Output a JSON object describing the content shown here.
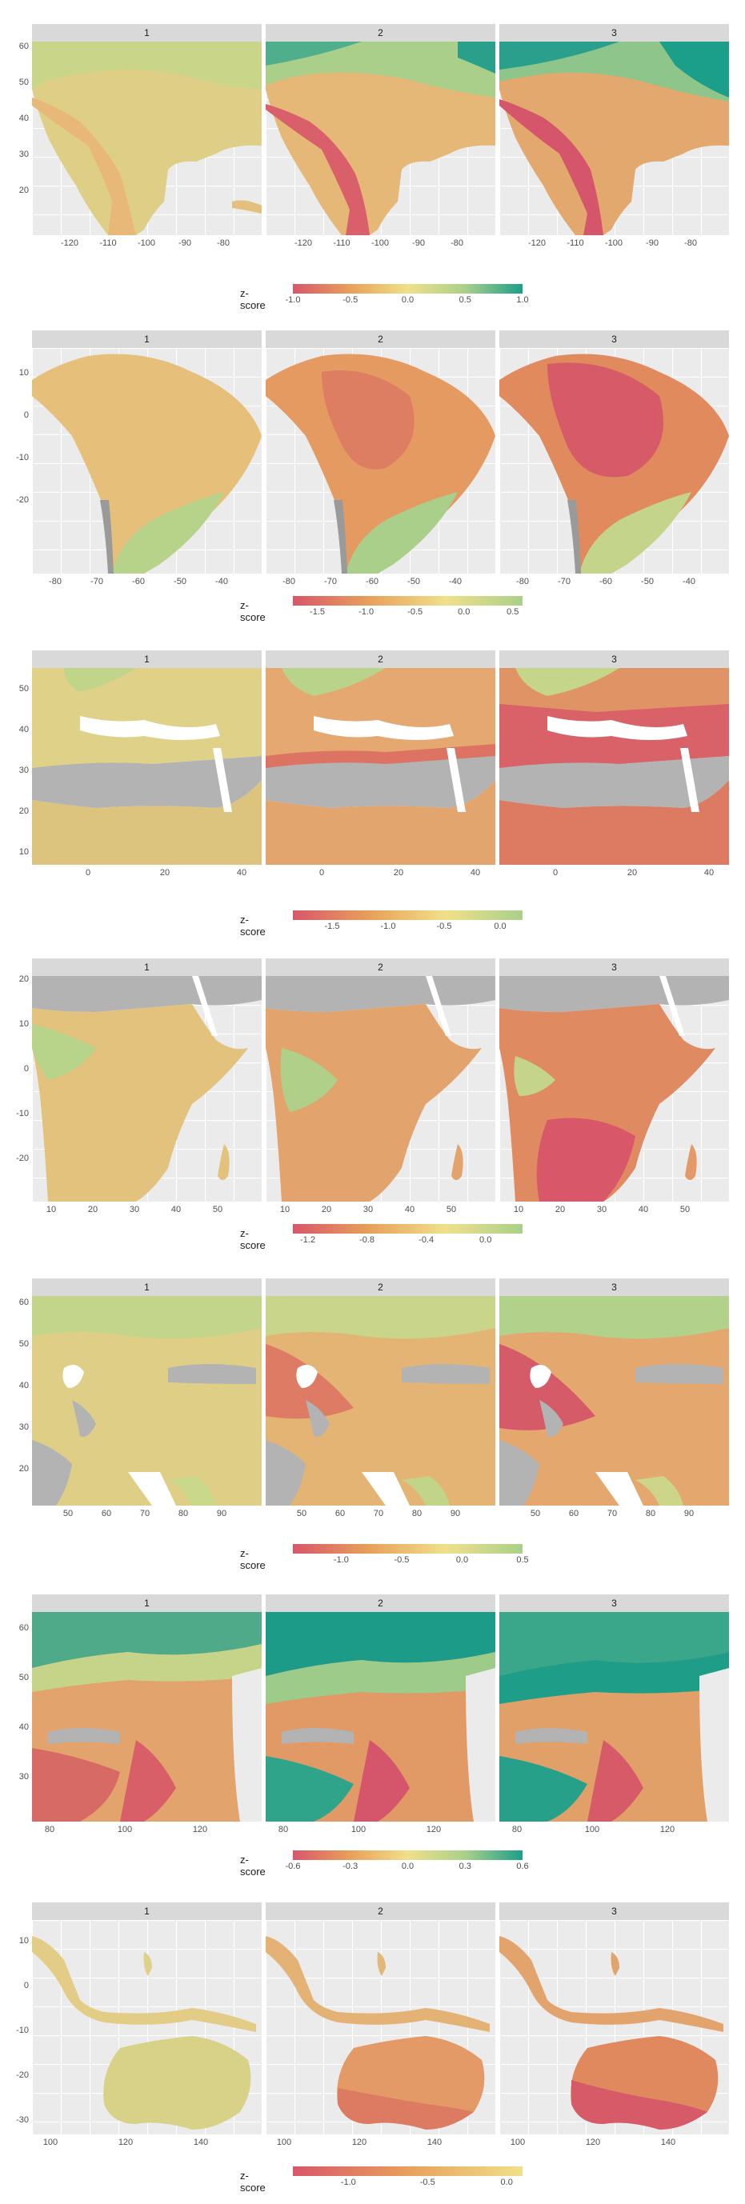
{
  "legend_title": "z-score",
  "panel_labels": [
    "1",
    "2",
    "3"
  ],
  "colors": {
    "low": "#d9566b",
    "mid_low": "#e8a05a",
    "mid": "#f0e08a",
    "mid_high": "#a9d08a",
    "high": "#1b9e8a",
    "missing": "#b3b3b3",
    "panel_bg": "#ebebeb",
    "strip": "#d9d9d9"
  },
  "regions": [
    {
      "name": "north-america",
      "y_ticks": [
        "60",
        "50",
        "40",
        "30",
        "20"
      ],
      "x_ticks": [
        "-120",
        "-110",
        "-100",
        "-90",
        "-80"
      ],
      "legend_ticks": [
        "-1.0",
        "-0.5",
        "0.0",
        "0.5",
        "1.0"
      ],
      "legend_range": [
        -1.0,
        1.0
      ],
      "legend_stops": [
        "#d9566b",
        "#e8a05a",
        "#f0e08a",
        "#a9d08a",
        "#1b9e8a"
      ]
    },
    {
      "name": "south-america",
      "y_ticks": [
        "10",
        "0",
        "-10",
        "-20"
      ],
      "x_ticks": [
        "-80",
        "-70",
        "-60",
        "-50",
        "-40"
      ],
      "legend_ticks": [
        "-1.5",
        "-1.0",
        "-0.5",
        "0.0",
        "0.5"
      ],
      "legend_range": [
        -1.75,
        0.6
      ],
      "legend_stops": [
        "#d9566b",
        "#e8a05a",
        "#f0e08a",
        "#a9d08a"
      ]
    },
    {
      "name": "europe-north-africa",
      "y_ticks": [
        "50",
        "40",
        "30",
        "20",
        "10"
      ],
      "x_ticks": [
        "0",
        "20",
        "40"
      ],
      "legend_ticks": [
        "-1.5",
        "-1.0",
        "-0.5",
        "0.0"
      ],
      "legend_range": [
        -1.85,
        0.2
      ],
      "legend_stops": [
        "#d9566b",
        "#e8a05a",
        "#f0e08a",
        "#a9d08a"
      ]
    },
    {
      "name": "central-africa",
      "y_ticks": [
        "20",
        "10",
        "0",
        "-10",
        "-20"
      ],
      "x_ticks": [
        "10",
        "20",
        "30",
        "40",
        "50"
      ],
      "legend_ticks": [
        "-1.2",
        "-0.8",
        "-0.4",
        "0.0"
      ],
      "legend_range": [
        -1.3,
        0.25
      ],
      "legend_stops": [
        "#d9566b",
        "#e8a05a",
        "#f0e08a",
        "#a9d08a"
      ]
    },
    {
      "name": "middle-east-south-asia",
      "y_ticks": [
        "60",
        "50",
        "40",
        "30",
        "20"
      ],
      "x_ticks": [
        "50",
        "60",
        "70",
        "80",
        "90"
      ],
      "legend_ticks": [
        "-1.0",
        "-0.5",
        "0.0",
        "0.5"
      ],
      "legend_range": [
        -1.4,
        0.5
      ],
      "legend_stops": [
        "#d9566b",
        "#e8a05a",
        "#f0e08a",
        "#a9d08a"
      ]
    },
    {
      "name": "east-asia",
      "y_ticks": [
        "60",
        "50",
        "40",
        "30"
      ],
      "x_ticks": [
        "80",
        "100",
        "120"
      ],
      "legend_ticks": [
        "-0.6",
        "-0.3",
        "0.0",
        "0.3",
        "0.6"
      ],
      "legend_range": [
        -0.6,
        0.6
      ],
      "legend_stops": [
        "#d9566b",
        "#e8a05a",
        "#f0e08a",
        "#a9d08a",
        "#1b9e8a"
      ]
    },
    {
      "name": "southeast-asia-australia",
      "y_ticks": [
        "10",
        "0",
        "-10",
        "-20",
        "-30"
      ],
      "x_ticks": [
        "100",
        "120",
        "140"
      ],
      "legend_ticks": [
        "-1.0",
        "-0.5",
        "0.0"
      ],
      "legend_range": [
        -1.35,
        0.1
      ],
      "legend_stops": [
        "#d9566b",
        "#e8a05a",
        "#f0e08a"
      ]
    }
  ]
}
